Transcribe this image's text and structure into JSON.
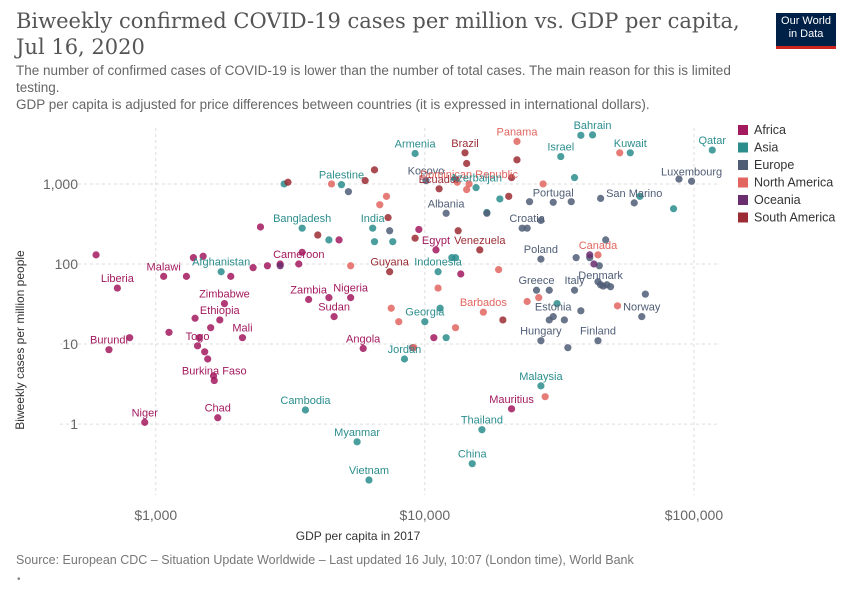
{
  "header": {
    "title": "Biweekly confirmed COVID-19 cases per million vs. GDP per capita, Jul 16, 2020",
    "subtitle_1": "The number of confirmed cases of COVID-19 is lower than the number of total cases. The main reason for this is limited testing.",
    "subtitle_2": "GDP per capita is adjusted for price differences between countries (it is expressed in international dollars).",
    "logo_line1": "Our World",
    "logo_line2": "in Data"
  },
  "footer": {
    "source": "Source: European CDC – Situation Update Worldwide – Last updated 16 July, 10:07 (London time), World Bank",
    "dot": "•"
  },
  "colors": {
    "Africa": "#a2195e",
    "Asia": "#2c8d8d",
    "Europe": "#4f5d75",
    "North America": "#e26560",
    "Oceania": "#6a2d6e",
    "South America": "#9b2c34"
  },
  "chart_data": {
    "type": "scatter",
    "xlabel": "GDP per capita in 2017",
    "ylabel": "Biweekly cases per million people",
    "x_scale": "log",
    "y_scale": "log",
    "xlim": [
      560,
      125000
    ],
    "ylim": [
      0.13,
      5000
    ],
    "x_ticks": [
      {
        "v": 1000,
        "label": "$1,000"
      },
      {
        "v": 10000,
        "label": "$10,000"
      },
      {
        "v": 100000,
        "label": "$100,000"
      }
    ],
    "y_ticks": [
      {
        "v": 1,
        "label": "1"
      },
      {
        "v": 10,
        "label": "10"
      },
      {
        "v": 100,
        "label": "100"
      },
      {
        "v": 1000,
        "label": "1,000"
      }
    ],
    "grid": true,
    "legend_position": "right",
    "legend": [
      "Africa",
      "Asia",
      "Europe",
      "North America",
      "Oceania",
      "South America"
    ],
    "labeled_points": [
      {
        "name": "Armenia",
        "region": "Asia",
        "x": 9200,
        "y": 2400
      },
      {
        "name": "Brazil",
        "region": "South America",
        "x": 14100,
        "y": 2450
      },
      {
        "name": "Panama",
        "region": "North America",
        "x": 22000,
        "y": 3400
      },
      {
        "name": "Israel",
        "region": "Asia",
        "x": 32000,
        "y": 2200
      },
      {
        "name": "Bahrain",
        "region": "Asia",
        "x": 42000,
        "y": 4100
      },
      {
        "name": "Kuwait",
        "region": "Asia",
        "x": 58000,
        "y": 2450
      },
      {
        "name": "Qatar",
        "region": "Asia",
        "x": 117000,
        "y": 2650
      },
      {
        "name": "Palestine",
        "region": "Asia",
        "x": 4900,
        "y": 980
      },
      {
        "name": "Kosovo",
        "region": "Europe",
        "x": 10100,
        "y": 1100
      },
      {
        "name": "Dominican Republic",
        "region": "North America",
        "x": 14600,
        "y": 1000
      },
      {
        "name": "Ecuador",
        "region": "South America",
        "x": 11300,
        "y": 870
      },
      {
        "name": "Azerbaijan",
        "region": "Asia",
        "x": 15500,
        "y": 900
      },
      {
        "name": "Luxembourg",
        "region": "Europe",
        "x": 98000,
        "y": 1080
      },
      {
        "name": "Albania",
        "region": "Europe",
        "x": 12000,
        "y": 430
      },
      {
        "name": "Portugal",
        "region": "Europe",
        "x": 30000,
        "y": 590
      },
      {
        "name": "San Marino",
        "region": "Europe",
        "x": 60000,
        "y": 580
      },
      {
        "name": "Bangladesh",
        "region": "Asia",
        "x": 3500,
        "y": 280
      },
      {
        "name": "India",
        "region": "Asia",
        "x": 6400,
        "y": 280
      },
      {
        "name": "Croatia",
        "region": "Europe",
        "x": 24000,
        "y": 280
      },
      {
        "name": "Egypt",
        "region": "Africa",
        "x": 11000,
        "y": 150
      },
      {
        "name": "Venezuela",
        "region": "South America",
        "x": 16000,
        "y": 150
      },
      {
        "name": "Afghanistan",
        "region": "Asia",
        "x": 1750,
        "y": 80
      },
      {
        "name": "Cameroon",
        "region": "Africa",
        "x": 3400,
        "y": 100
      },
      {
        "name": "Guyana",
        "region": "South America",
        "x": 7400,
        "y": 80
      },
      {
        "name": "Indonesia",
        "region": "Asia",
        "x": 11200,
        "y": 80
      },
      {
        "name": "Poland",
        "region": "Europe",
        "x": 27000,
        "y": 115
      },
      {
        "name": "Canada",
        "region": "North America",
        "x": 44000,
        "y": 130
      },
      {
        "name": "Malawi",
        "region": "Africa",
        "x": 1070,
        "y": 70
      },
      {
        "name": "Liberia",
        "region": "Africa",
        "x": 720,
        "y": 50
      },
      {
        "name": "Zimbabwe",
        "region": "Africa",
        "x": 1800,
        "y": 32
      },
      {
        "name": "Zambia",
        "region": "Africa",
        "x": 3700,
        "y": 36
      },
      {
        "name": "Nigeria",
        "region": "Africa",
        "x": 5300,
        "y": 38
      },
      {
        "name": "Greece",
        "region": "Europe",
        "x": 26000,
        "y": 47
      },
      {
        "name": "Italy",
        "region": "Europe",
        "x": 36000,
        "y": 47
      },
      {
        "name": "Denmark",
        "region": "Europe",
        "x": 45000,
        "y": 55
      },
      {
        "name": "Ethiopia",
        "region": "Africa",
        "x": 1730,
        "y": 20
      },
      {
        "name": "Sudan",
        "region": "Africa",
        "x": 4600,
        "y": 22
      },
      {
        "name": "Barbados",
        "region": "North America",
        "x": 16500,
        "y": 25
      },
      {
        "name": "Georgia",
        "region": "Asia",
        "x": 10000,
        "y": 19
      },
      {
        "name": "Estonia",
        "region": "Europe",
        "x": 30000,
        "y": 22
      },
      {
        "name": "Norway",
        "region": "Europe",
        "x": 64000,
        "y": 22
      },
      {
        "name": "Togo",
        "region": "Africa",
        "x": 1430,
        "y": 9.5
      },
      {
        "name": "Mali",
        "region": "Africa",
        "x": 2100,
        "y": 12
      },
      {
        "name": "Burundi",
        "region": "Africa",
        "x": 670,
        "y": 8.5
      },
      {
        "name": "Angola",
        "region": "Africa",
        "x": 5900,
        "y": 8.8
      },
      {
        "name": "Jordan",
        "region": "Asia",
        "x": 8400,
        "y": 6.5
      },
      {
        "name": "Hungary",
        "region": "Europe",
        "x": 27000,
        "y": 11
      },
      {
        "name": "Finland",
        "region": "Europe",
        "x": 44000,
        "y": 11
      },
      {
        "name": "Burkina Faso",
        "region": "Africa",
        "x": 1650,
        "y": 3.5
      },
      {
        "name": "Malaysia",
        "region": "Asia",
        "x": 27000,
        "y": 3
      },
      {
        "name": "Cambodia",
        "region": "Asia",
        "x": 3600,
        "y": 1.5
      },
      {
        "name": "Mauritius",
        "region": "Africa",
        "x": 21000,
        "y": 1.55
      },
      {
        "name": "Niger",
        "region": "Africa",
        "x": 910,
        "y": 1.05
      },
      {
        "name": "Chad",
        "region": "Africa",
        "x": 1700,
        "y": 1.2
      },
      {
        "name": "Thailand",
        "region": "Asia",
        "x": 16300,
        "y": 0.85
      },
      {
        "name": "Myanmar",
        "region": "Asia",
        "x": 5600,
        "y": 0.6
      },
      {
        "name": "China",
        "region": "Asia",
        "x": 15000,
        "y": 0.32
      },
      {
        "name": "Vietnam",
        "region": "Asia",
        "x": 6200,
        "y": 0.2
      }
    ],
    "unlabeled_points": [
      {
        "region": "Africa",
        "x": 600,
        "y": 130
      },
      {
        "region": "Africa",
        "x": 1380,
        "y": 120
      },
      {
        "region": "Africa",
        "x": 1500,
        "y": 125
      },
      {
        "region": "Africa",
        "x": 2300,
        "y": 90
      },
      {
        "region": "Africa",
        "x": 1900,
        "y": 70
      },
      {
        "region": "Africa",
        "x": 1300,
        "y": 70
      },
      {
        "region": "Africa",
        "x": 2450,
        "y": 290
      },
      {
        "region": "Africa",
        "x": 2900,
        "y": 100
      },
      {
        "region": "Africa",
        "x": 3500,
        "y": 140
      },
      {
        "region": "Africa",
        "x": 4800,
        "y": 200
      },
      {
        "region": "Africa",
        "x": 9500,
        "y": 270
      },
      {
        "region": "Africa",
        "x": 13600,
        "y": 75
      },
      {
        "region": "Africa",
        "x": 1400,
        "y": 21
      },
      {
        "region": "Africa",
        "x": 1600,
        "y": 16
      },
      {
        "region": "Africa",
        "x": 1120,
        "y": 14
      },
      {
        "region": "Africa",
        "x": 1450,
        "y": 12
      },
      {
        "region": "Africa",
        "x": 800,
        "y": 12
      },
      {
        "region": "Africa",
        "x": 1520,
        "y": 8
      },
      {
        "region": "Africa",
        "x": 1560,
        "y": 6.5
      },
      {
        "region": "Africa",
        "x": 1640,
        "y": 4
      },
      {
        "region": "Africa",
        "x": 10800,
        "y": 12
      },
      {
        "region": "Africa",
        "x": 4400,
        "y": 38
      },
      {
        "region": "Africa",
        "x": 2600,
        "y": 95
      },
      {
        "region": "Asia",
        "x": 3000,
        "y": 1000
      },
      {
        "region": "Asia",
        "x": 6500,
        "y": 190
      },
      {
        "region": "Asia",
        "x": 7600,
        "y": 190
      },
      {
        "region": "Asia",
        "x": 4400,
        "y": 200
      },
      {
        "region": "Asia",
        "x": 13000,
        "y": 120
      },
      {
        "region": "Asia",
        "x": 12600,
        "y": 120
      },
      {
        "region": "Asia",
        "x": 11400,
        "y": 28
      },
      {
        "region": "Asia",
        "x": 12000,
        "y": 12
      },
      {
        "region": "Asia",
        "x": 17000,
        "y": 440
      },
      {
        "region": "Asia",
        "x": 19000,
        "y": 650
      },
      {
        "region": "Asia",
        "x": 38000,
        "y": 4050
      },
      {
        "region": "Asia",
        "x": 36000,
        "y": 1200
      },
      {
        "region": "Asia",
        "x": 63000,
        "y": 700
      },
      {
        "region": "Asia",
        "x": 84000,
        "y": 490
      },
      {
        "region": "Asia",
        "x": 31000,
        "y": 32
      },
      {
        "region": "Europe",
        "x": 5200,
        "y": 800
      },
      {
        "region": "Europe",
        "x": 7400,
        "y": 260
      },
      {
        "region": "Europe",
        "x": 13000,
        "y": 1150
      },
      {
        "region": "Europe",
        "x": 17000,
        "y": 430
      },
      {
        "region": "Europe",
        "x": 23000,
        "y": 280
      },
      {
        "region": "Europe",
        "x": 24500,
        "y": 600
      },
      {
        "region": "Europe",
        "x": 27000,
        "y": 350
      },
      {
        "region": "Europe",
        "x": 35000,
        "y": 600
      },
      {
        "region": "Europe",
        "x": 45000,
        "y": 660
      },
      {
        "region": "Europe",
        "x": 47000,
        "y": 200
      },
      {
        "region": "Europe",
        "x": 44500,
        "y": 95
      },
      {
        "region": "Europe",
        "x": 36500,
        "y": 120
      },
      {
        "region": "Europe",
        "x": 41000,
        "y": 120
      },
      {
        "region": "Europe",
        "x": 44000,
        "y": 60
      },
      {
        "region": "Europe",
        "x": 46000,
        "y": 53
      },
      {
        "region": "Europe",
        "x": 47500,
        "y": 55
      },
      {
        "region": "Europe",
        "x": 49000,
        "y": 52
      },
      {
        "region": "Europe",
        "x": 66000,
        "y": 42
      },
      {
        "region": "Europe",
        "x": 29000,
        "y": 47
      },
      {
        "region": "Europe",
        "x": 33000,
        "y": 20
      },
      {
        "region": "Europe",
        "x": 38000,
        "y": 26
      },
      {
        "region": "Europe",
        "x": 34000,
        "y": 9
      },
      {
        "region": "Europe",
        "x": 29000,
        "y": 20
      },
      {
        "region": "Europe",
        "x": 88000,
        "y": 1150
      },
      {
        "region": "Europe",
        "x": 9000,
        "y": 9
      },
      {
        "region": "North America",
        "x": 4500,
        "y": 1000
      },
      {
        "region": "North America",
        "x": 7200,
        "y": 700
      },
      {
        "region": "North America",
        "x": 6800,
        "y": 550
      },
      {
        "region": "North America",
        "x": 13200,
        "y": 1050
      },
      {
        "region": "North America",
        "x": 14300,
        "y": 850
      },
      {
        "region": "North America",
        "x": 27500,
        "y": 1000
      },
      {
        "region": "North America",
        "x": 53000,
        "y": 2450
      },
      {
        "region": "North America",
        "x": 5300,
        "y": 95
      },
      {
        "region": "North America",
        "x": 11200,
        "y": 50
      },
      {
        "region": "North America",
        "x": 7500,
        "y": 28
      },
      {
        "region": "North America",
        "x": 8000,
        "y": 19
      },
      {
        "region": "North America",
        "x": 13000,
        "y": 16
      },
      {
        "region": "North America",
        "x": 18800,
        "y": 85
      },
      {
        "region": "North America",
        "x": 24000,
        "y": 34
      },
      {
        "region": "North America",
        "x": 26500,
        "y": 38
      },
      {
        "region": "North America",
        "x": 28000,
        "y": 2.2
      },
      {
        "region": "North America",
        "x": 52000,
        "y": 30
      },
      {
        "region": "North America",
        "x": 9100,
        "y": 9
      },
      {
        "region": "Oceania",
        "x": 2900,
        "y": 95
      },
      {
        "region": "Oceania",
        "x": 41000,
        "y": 130
      },
      {
        "region": "Oceania",
        "x": 42500,
        "y": 100
      },
      {
        "region": "South America",
        "x": 3100,
        "y": 1050
      },
      {
        "region": "South America",
        "x": 6000,
        "y": 1100
      },
      {
        "region": "South America",
        "x": 6500,
        "y": 1500
      },
      {
        "region": "South America",
        "x": 7300,
        "y": 380
      },
      {
        "region": "South America",
        "x": 9200,
        "y": 210
      },
      {
        "region": "South America",
        "x": 13300,
        "y": 260
      },
      {
        "region": "South America",
        "x": 14300,
        "y": 1800
      },
      {
        "region": "South America",
        "x": 19500,
        "y": 20
      },
      {
        "region": "South America",
        "x": 21000,
        "y": 1200
      },
      {
        "region": "South America",
        "x": 22000,
        "y": 2000
      },
      {
        "region": "South America",
        "x": 20500,
        "y": 700
      },
      {
        "region": "South America",
        "x": 4000,
        "y": 230
      }
    ]
  }
}
